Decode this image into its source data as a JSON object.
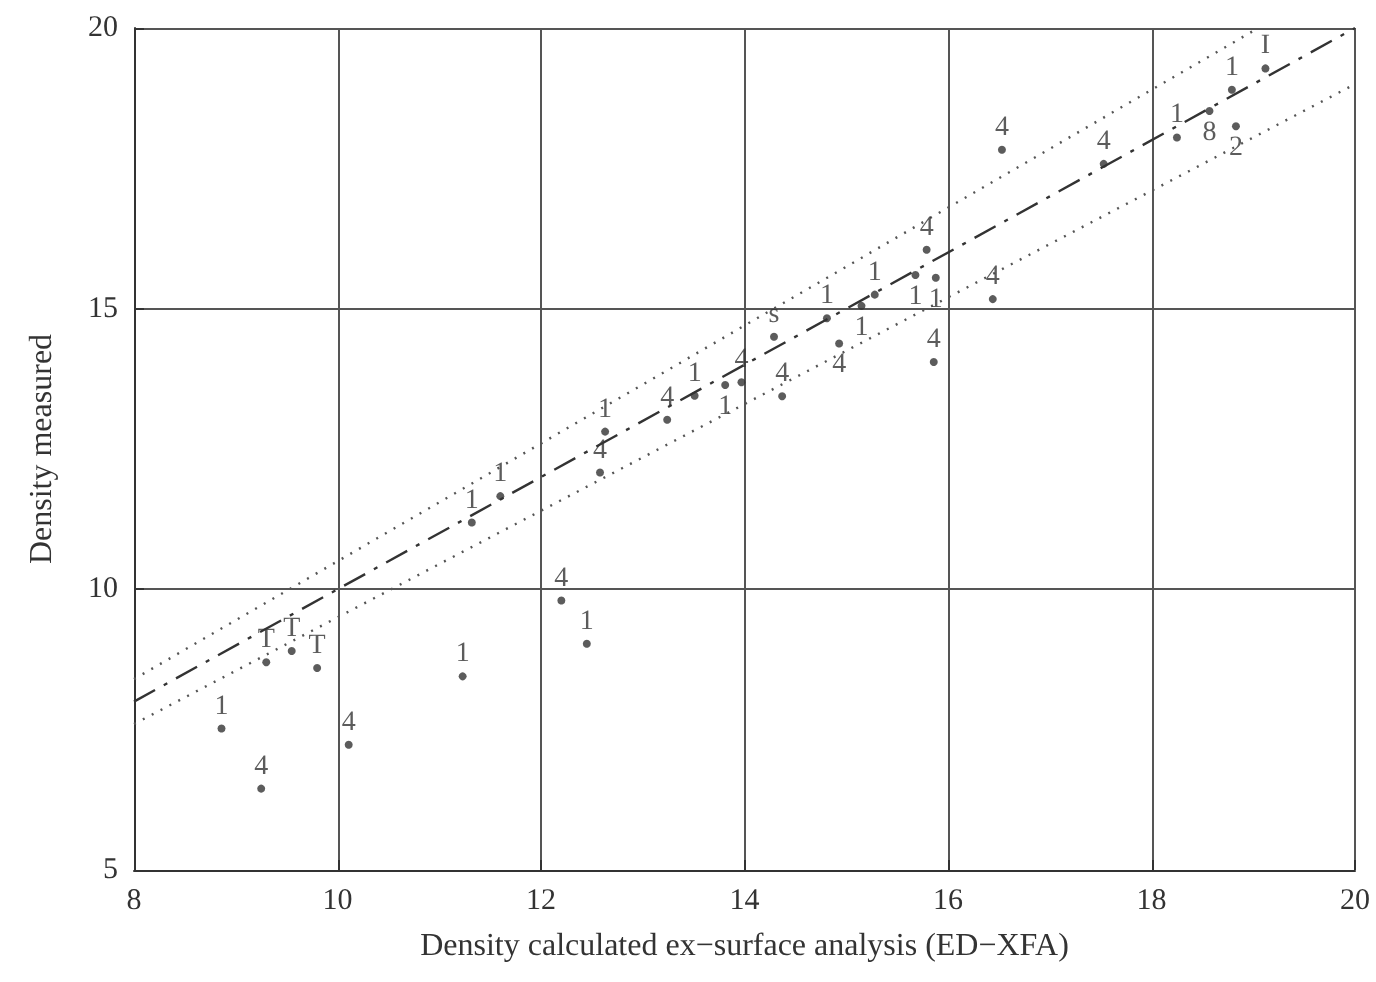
{
  "chart_data": {
    "type": "scatter",
    "xlabel": "Density calculated ex−surface analysis (ED−XFA)",
    "ylabel": "Density measured",
    "xlim": [
      8,
      20
    ],
    "xticks": [
      8,
      10,
      12,
      14,
      16,
      18,
      20
    ],
    "ylim": [
      5,
      20
    ],
    "yticks": [
      5,
      10,
      15,
      20
    ],
    "grid": true,
    "series": [
      {
        "name": "1",
        "color": "#333333",
        "marker": "circle",
        "x": [
          8.86,
          11.23,
          12.45,
          11.32,
          11.6,
          12.63,
          13.51,
          13.81,
          14.81,
          15.15,
          15.28,
          15.68,
          15.88,
          18.25,
          18.79
        ],
        "values": [
          7.52,
          8.45,
          9.03,
          11.19,
          11.66,
          12.81,
          13.45,
          13.64,
          14.83,
          15.05,
          15.25,
          15.6,
          15.55,
          18.05,
          18.9
        ]
      },
      {
        "name": "4",
        "color": "#333333",
        "marker": "circle",
        "x": [
          9.25,
          10.11,
          12.2,
          12.58,
          13.24,
          13.97,
          14.37,
          14.93,
          15.86,
          15.79,
          16.44,
          16.53,
          17.53
        ],
        "values": [
          6.45,
          7.23,
          9.8,
          12.08,
          13.02,
          13.69,
          13.44,
          14.38,
          14.05,
          16.05,
          15.17,
          17.83,
          17.58
        ]
      },
      {
        "name": "T",
        "color": "#333333",
        "marker": "circle",
        "x": [
          9.3,
          9.55,
          9.8
        ],
        "values": [
          8.7,
          8.9,
          8.6
        ]
      },
      {
        "name": "I",
        "color": "#333333",
        "marker": "circle",
        "x": [
          19.12
        ],
        "values": [
          19.28
        ]
      },
      {
        "name": "s",
        "color": "#333333",
        "marker": "circle",
        "x": [
          14.29
        ],
        "values": [
          14.5
        ]
      },
      {
        "name": "8",
        "color": "#333333",
        "marker": "circle",
        "x": [
          18.57
        ],
        "values": [
          18.52
        ]
      },
      {
        "name": "2",
        "color": "#333333",
        "marker": "circle",
        "x": [
          18.83
        ],
        "values": [
          18.25
        ]
      },
      {
        "type": "line",
        "color": "#333333",
        "marker": "none",
        "line_style": "dashed",
        "x": [
          8,
          20
        ],
        "values": [
          8,
          20
        ]
      },
      {
        "type": "line",
        "color": "#555555",
        "marker": "none",
        "line_style": "dotted",
        "x": [
          8,
          19.05
        ],
        "values": [
          8.4,
          20
        ]
      },
      {
        "type": "line",
        "color": "#555555",
        "marker": "none",
        "line_style": "dotted",
        "x": [
          8,
          20
        ],
        "values": [
          7.6,
          19
        ]
      }
    ]
  }
}
